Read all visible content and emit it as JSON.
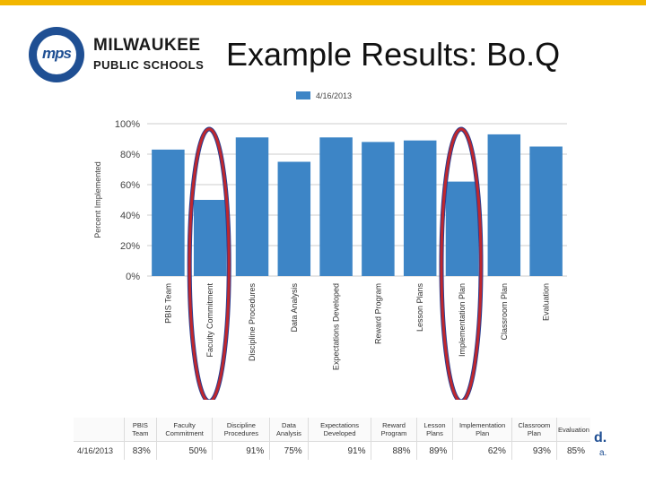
{
  "header": {
    "logo_name": "MILWAUKEE",
    "logo_sub": "PUBLIC SCHOOLS",
    "logo_mark": "mps",
    "title": "Example Results: Bo.Q"
  },
  "chart_data": {
    "type": "bar",
    "title": "",
    "xlabel": "",
    "ylabel": "Percent Implemented",
    "ylim": [
      0,
      100
    ],
    "yticks": [
      "0%",
      "20%",
      "40%",
      "60%",
      "80%",
      "100%"
    ],
    "grid": true,
    "legend_position": "top",
    "categories": [
      "PBIS Team",
      "Faculty Commitment",
      "Discipline Procedures",
      "Data Analysis",
      "Expectations Developed",
      "Reward Program",
      "Lesson Plans",
      "Implementation Plan",
      "Classroom Plan",
      "Evaluation"
    ],
    "series": [
      {
        "name": "4/16/2013",
        "color": "#3d85c6",
        "values": [
          83,
          50,
          91,
          75,
          91,
          88,
          89,
          62,
          93,
          85
        ]
      }
    ],
    "highlighted_categories": [
      "Faculty Commitment",
      "Implementation Plan"
    ],
    "highlight_color": "#c0272d"
  },
  "table": {
    "headers": [
      "PBIS Team",
      "Faculty Commitment",
      "Discipline Procedures",
      "Data Analysis",
      "Expectations Developed",
      "Reward Program",
      "Lesson Plans",
      "Implementation Plan",
      "Classroom Plan",
      "Evaluation"
    ],
    "row_label": "4/16/2013",
    "values": [
      "83%",
      "50%",
      "91%",
      "75%",
      "91%",
      "88%",
      "89%",
      "62%",
      "93%",
      "85%"
    ]
  },
  "footer": {
    "corner_text": "d.",
    "corner_text2": "a."
  }
}
